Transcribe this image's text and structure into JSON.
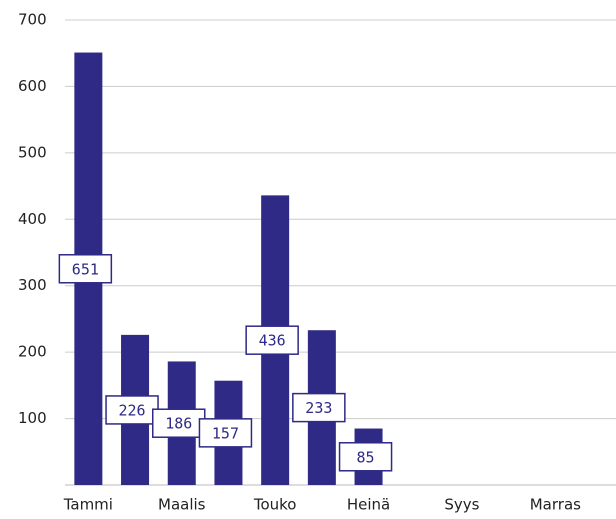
{
  "chart_data": {
    "type": "bar",
    "categories": [
      "Tammi",
      null,
      "Maalis",
      null,
      "Touko",
      null,
      "Heinä",
      null,
      "Syys",
      null,
      "Marras"
    ],
    "values": [
      651,
      226,
      186,
      157,
      436,
      233,
      85,
      null,
      null,
      null,
      null
    ],
    "color": "#2e2a86",
    "ylim": [
      0,
      700
    ],
    "yticks": [
      100,
      200,
      300,
      400,
      500,
      600,
      700
    ],
    "grid": true
  }
}
